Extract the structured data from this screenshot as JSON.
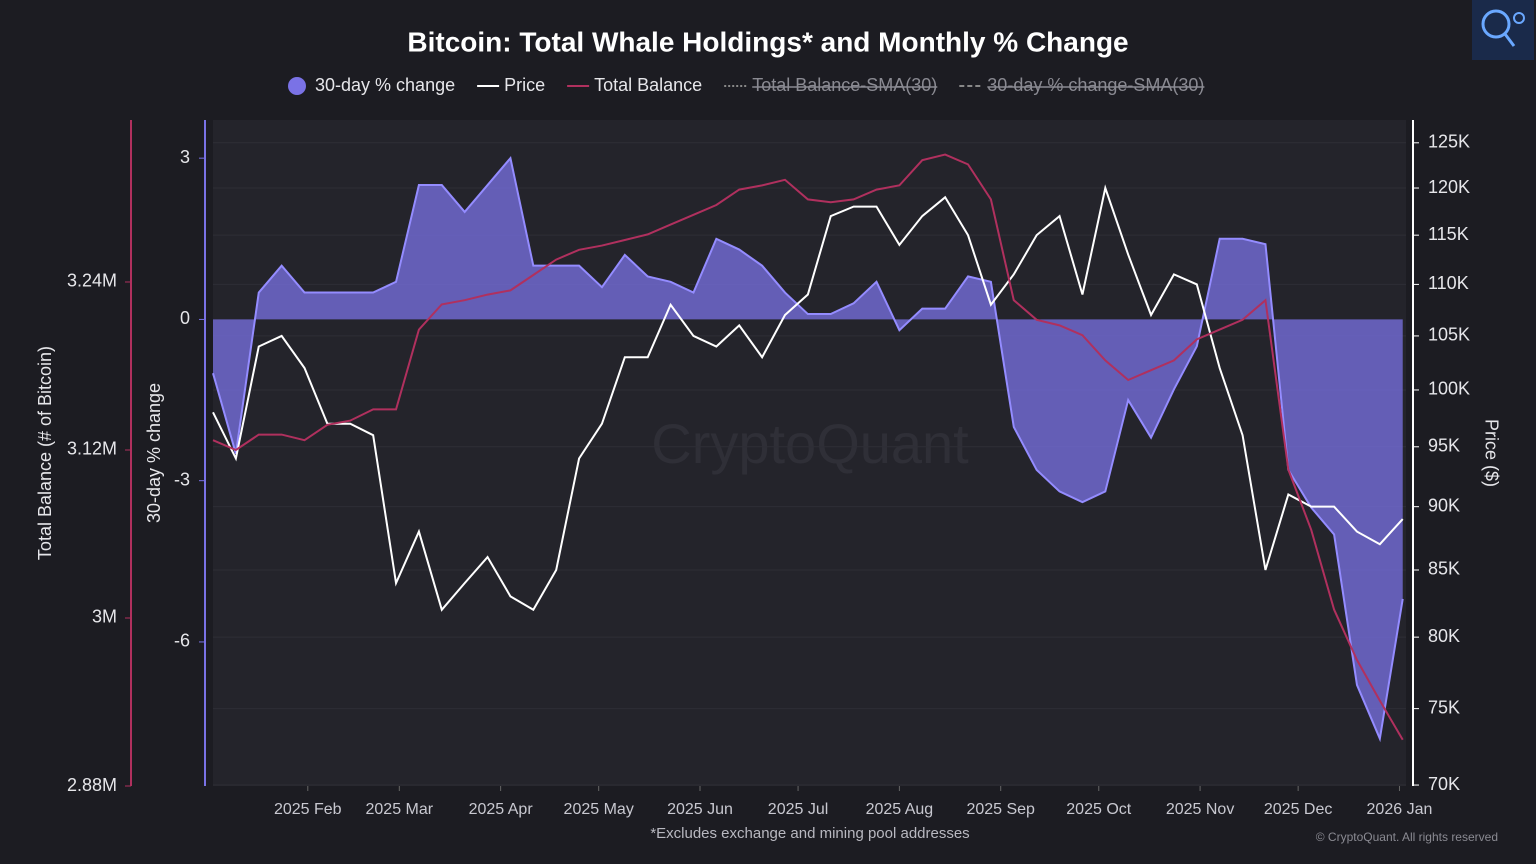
{
  "chart_data": {
    "type": "multi_axis_line_area",
    "title": "Bitcoin: Total Whale Holdings* and Monthly % Change",
    "footnote": "*Excludes exchange and mining pool addresses",
    "watermark": "CryptoQuant",
    "copyright": "© CryptoQuant. All rights reserved",
    "y_label": "30-day % change",
    "y2_label": "Price ($)",
    "y3_label": "Total Balance (# of Bitcoin)",
    "hidden_series": [
      "Total Balance-SMA(30)",
      "30-day % change-SMA(30)"
    ],
    "x": [
      "2025-01-03",
      "2025-01-10",
      "2025-01-17",
      "2025-01-24",
      "2025-01-31",
      "2025-02-07",
      "2025-02-14",
      "2025-02-21",
      "2025-02-28",
      "2025-03-07",
      "2025-03-14",
      "2025-03-21",
      "2025-03-28",
      "2025-04-04",
      "2025-04-11",
      "2025-04-18",
      "2025-04-25",
      "2025-05-02",
      "2025-05-09",
      "2025-05-16",
      "2025-05-23",
      "2025-05-30",
      "2025-06-06",
      "2025-06-13",
      "2025-06-20",
      "2025-06-27",
      "2025-07-04",
      "2025-07-11",
      "2025-07-18",
      "2025-07-25",
      "2025-08-01",
      "2025-08-08",
      "2025-08-15",
      "2025-08-22",
      "2025-08-29",
      "2025-09-05",
      "2025-09-12",
      "2025-09-19",
      "2025-09-26",
      "2025-10-03",
      "2025-10-10",
      "2025-10-17",
      "2025-10-24",
      "2025-10-31",
      "2025-11-07",
      "2025-11-14",
      "2025-11-21",
      "2025-11-28",
      "2025-12-05",
      "2025-12-12",
      "2025-12-19",
      "2025-12-26",
      "2026-01-02"
    ],
    "xlim": [
      "2025-01-03",
      "2026-01-03"
    ],
    "xticks": [
      {
        "value": "2025-02",
        "label": "2025 Feb"
      },
      {
        "value": "2025-03",
        "label": "2025 Mar"
      },
      {
        "value": "2025-04",
        "label": "2025 Apr"
      },
      {
        "value": "2025-05",
        "label": "2025 May"
      },
      {
        "value": "2025-06",
        "label": "2025 Jun"
      },
      {
        "value": "2025-07",
        "label": "2025 Jul"
      },
      {
        "value": "2025-08",
        "label": "2025 Aug"
      },
      {
        "value": "2025-09",
        "label": "2025 Sep"
      },
      {
        "value": "2025-10",
        "label": "2025 Oct"
      },
      {
        "value": "2025-11",
        "label": "2025 Nov"
      },
      {
        "value": "2025-12",
        "label": "2025 Dec"
      },
      {
        "value": "2026-01",
        "label": "2026 Jan"
      }
    ],
    "ylim": [
      -8.68,
      3.71
    ],
    "yticks": [
      3,
      0,
      -3,
      -6
    ],
    "y2lim": [
      69940,
      127600
    ],
    "y2_log": true,
    "y2ticks": [
      {
        "value": 125000,
        "label": "125K"
      },
      {
        "value": 120000,
        "label": "120K"
      },
      {
        "value": 115000,
        "label": "115K"
      },
      {
        "value": 110000,
        "label": "110K"
      },
      {
        "value": 105000,
        "label": "105K"
      },
      {
        "value": 100000,
        "label": "100K"
      },
      {
        "value": 95000,
        "label": "95K"
      },
      {
        "value": 90000,
        "label": "90K"
      },
      {
        "value": 85000,
        "label": "85K"
      },
      {
        "value": 80000,
        "label": "80K"
      },
      {
        "value": 75000,
        "label": "75K"
      },
      {
        "value": 70000,
        "label": "70K"
      }
    ],
    "y3lim": [
      2880000,
      3355700
    ],
    "y3ticks": [
      {
        "value": 3240000,
        "label": "3.24M"
      },
      {
        "value": 3120000,
        "label": "3.12M"
      },
      {
        "value": 3000000,
        "label": "3M"
      },
      {
        "value": 2880000,
        "label": "2.88M"
      }
    ],
    "grid": true,
    "series": [
      {
        "name": "30-day % change",
        "kind": "area",
        "axis": "y",
        "color": "#7a72e6",
        "values": [
          -1,
          -2.5,
          0.5,
          1,
          0.5,
          0.5,
          0.5,
          0.5,
          0.7,
          2.5,
          2.5,
          2.0,
          2.5,
          3.0,
          1.0,
          1.0,
          1.0,
          0.6,
          1.2,
          0.8,
          0.7,
          0.5,
          1.5,
          1.3,
          1.0,
          0.5,
          0.1,
          0.1,
          0.3,
          0.7,
          -0.2,
          0.2,
          0.2,
          0.8,
          0.7,
          -2.0,
          -2.8,
          -3.2,
          -3.4,
          -3.2,
          -1.5,
          -2.2,
          -1.3,
          -0.5,
          1.5,
          1.5,
          1.4,
          -2.8,
          -3.5,
          -4.0,
          -6.8,
          -7.8,
          -5.2
        ]
      },
      {
        "name": "Price",
        "kind": "line",
        "axis": "y2",
        "color": "#ffffff",
        "values": [
          98000,
          94000,
          104000,
          105000,
          102000,
          97000,
          97000,
          96000,
          84000,
          88000,
          82000,
          84000,
          86000,
          83000,
          82000,
          85000,
          94000,
          97000,
          103000,
          103000,
          108000,
          105000,
          104000,
          106000,
          103000,
          107000,
          109000,
          117000,
          118000,
          118000,
          114000,
          117000,
          119000,
          115000,
          108000,
          111000,
          115000,
          117000,
          109000,
          120000,
          113000,
          107000,
          111000,
          110000,
          102000,
          96000,
          85000,
          91000,
          90000,
          90000,
          88000,
          87000,
          89000
        ]
      },
      {
        "name": "Total Balance",
        "kind": "line",
        "axis": "y3",
        "color": "#b0305e",
        "values": [
          3127000,
          3120000,
          3131000,
          3131000,
          3127000,
          3138000,
          3141000,
          3149000,
          3149000,
          3206000,
          3224000,
          3227000,
          3231000,
          3234000,
          3245000,
          3256000,
          3263000,
          3266000,
          3270000,
          3274000,
          3281000,
          3288000,
          3295000,
          3306000,
          3309000,
          3313000,
          3299000,
          3297000,
          3299000,
          3306000,
          3309000,
          3327000,
          3331000,
          3324000,
          3299000,
          3227000,
          3213000,
          3209000,
          3202000,
          3184000,
          3170000,
          3177000,
          3184000,
          3199000,
          3206000,
          3213000,
          3227000,
          3106000,
          3063000,
          3006000,
          2970000,
          2941000,
          2913000
        ]
      }
    ]
  }
}
